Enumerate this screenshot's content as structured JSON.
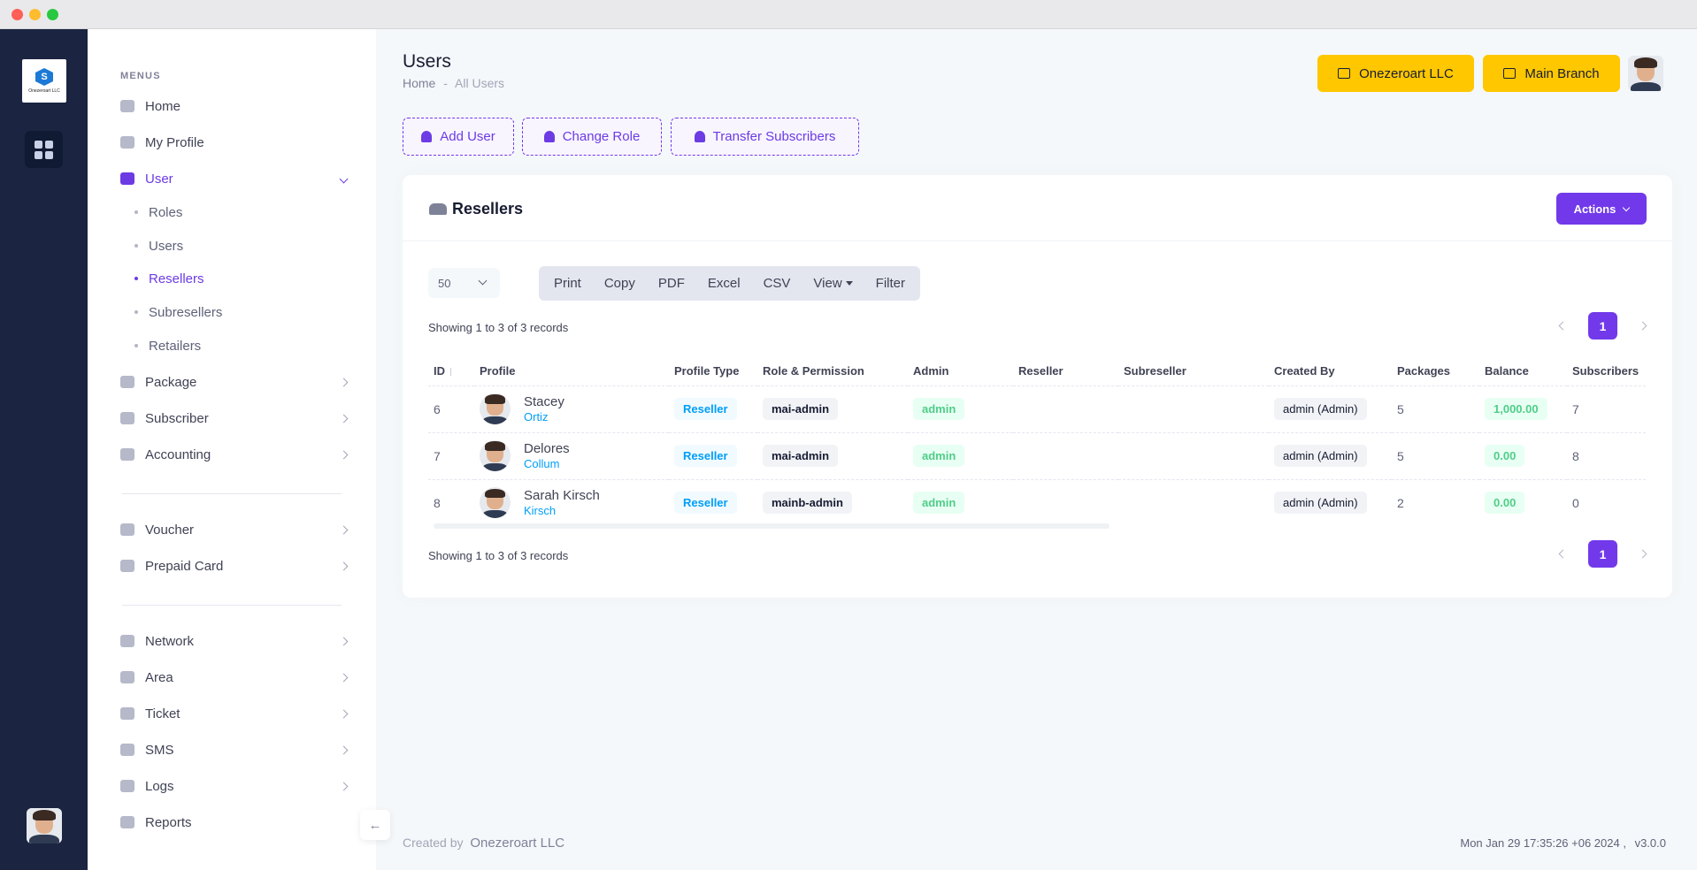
{
  "sidebar": {
    "heading": "MENUS",
    "items": [
      {
        "label": "Home"
      },
      {
        "label": "My Profile"
      },
      {
        "label": "User"
      },
      {
        "label": "Package"
      },
      {
        "label": "Subscriber"
      },
      {
        "label": "Accounting"
      },
      {
        "label": "Voucher"
      },
      {
        "label": "Prepaid Card"
      },
      {
        "label": "Network"
      },
      {
        "label": "Area"
      },
      {
        "label": "Ticket"
      },
      {
        "label": "SMS"
      },
      {
        "label": "Logs"
      },
      {
        "label": "Reports"
      }
    ],
    "user_subitems": [
      {
        "label": "Roles"
      },
      {
        "label": "Users"
      },
      {
        "label": "Resellers"
      },
      {
        "label": "Subresellers"
      },
      {
        "label": "Retailers"
      }
    ],
    "logo_text": "Onezeroart LLC"
  },
  "header": {
    "title": "Users",
    "breadcrumb_home": "Home",
    "breadcrumb_sep": "-",
    "breadcrumb_current": "All Users",
    "company_button": "Onezeroart LLC",
    "branch_button": "Main Branch"
  },
  "toolbar": {
    "add_user": "Add User",
    "change_role": "Change Role",
    "transfer_subscribers": "Transfer Subscribers"
  },
  "card": {
    "title": "Resellers",
    "actions_label": "Actions",
    "per_page": "50",
    "exports": [
      "Print",
      "Copy",
      "PDF",
      "Excel",
      "CSV",
      "View",
      "Filter"
    ],
    "showing_text": "Showing 1 to 3 of 3 records",
    "current_page": "1"
  },
  "table": {
    "columns": [
      "ID",
      "Profile",
      "Profile Type",
      "Role & Permission",
      "Admin",
      "Reseller",
      "Subreseller",
      "Created By",
      "Packages",
      "Balance",
      "Subscribers"
    ],
    "rows": [
      {
        "id": "6",
        "name": "Stacey",
        "sub": "Ortiz",
        "type": "Reseller",
        "role": "mai-admin",
        "admin": "admin",
        "reseller": "",
        "subreseller": "",
        "created_by": "admin (Admin)",
        "packages": "5",
        "balance": "1,000.00",
        "subscribers": "7"
      },
      {
        "id": "7",
        "name": "Delores",
        "sub": "Collum",
        "type": "Reseller",
        "role": "mai-admin",
        "admin": "admin",
        "reseller": "",
        "subreseller": "",
        "created_by": "admin (Admin)",
        "packages": "5",
        "balance": "0.00",
        "subscribers": "8"
      },
      {
        "id": "8",
        "name": "Sarah Kirsch",
        "sub": "Kirsch",
        "type": "Reseller",
        "role": "mainb-admin",
        "admin": "admin",
        "reseller": "",
        "subreseller": "",
        "created_by": "admin (Admin)",
        "packages": "2",
        "balance": "0.00",
        "subscribers": "0"
      }
    ]
  },
  "footer": {
    "created_by": "Created by",
    "org": "Onezeroart LLC",
    "timestamp": "Mon Jan 29 17:35:26 +06 2024 ,",
    "version": "v3.0.0"
  },
  "colors": {
    "accent": "#7239ea",
    "warning": "#ffc700",
    "info": "#009ef7",
    "success": "#50cd89",
    "rail": "#1b2440"
  }
}
